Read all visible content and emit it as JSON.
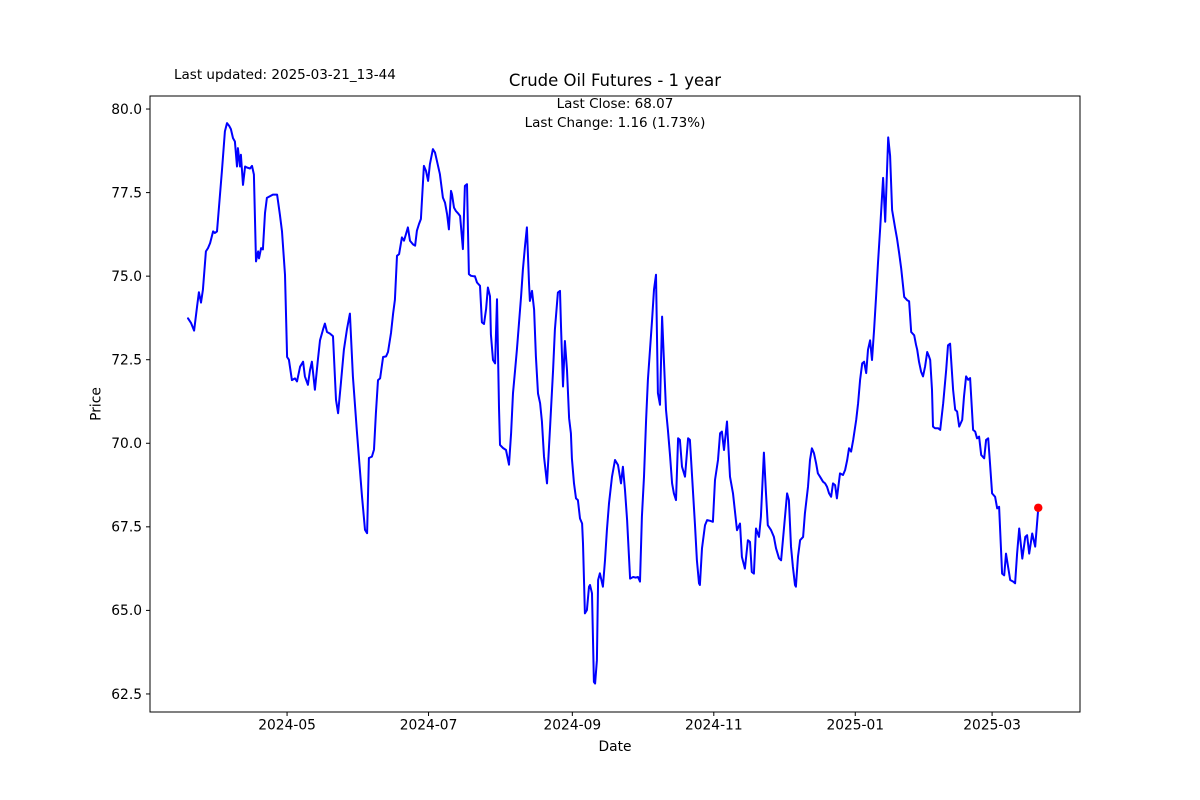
{
  "annotations": {
    "last_updated": "Last updated: 2025-03-21_13-44",
    "last_close_line": "Last Close: 68.07",
    "last_change_line": "Last Change: 1.16 (1.73%)"
  },
  "chart_data": {
    "type": "line",
    "title": "Crude Oil Futures - 1 year",
    "xlabel": "Date",
    "ylabel": "Price",
    "line_color": "#0000ff",
    "marker_color": "#ff0000",
    "frame_color": "#000000",
    "last_close": 68.07,
    "last_change": 1.16,
    "last_change_pct": "1.73%",
    "legend": "none",
    "grid": false,
    "x_unit": "days since 2024-03-21",
    "xlim_days": [
      -18.1,
      382.9
    ],
    "ylim": [
      61.96,
      80.39
    ],
    "y_ticks": [
      62.5,
      65.0,
      67.5,
      70.0,
      72.5,
      75.0,
      77.5,
      80.0
    ],
    "x_ticks": [
      {
        "day": 41,
        "label": "2024-05"
      },
      {
        "day": 102,
        "label": "2024-07"
      },
      {
        "day": 164,
        "label": "2024-09"
      },
      {
        "day": 225,
        "label": "2024-11"
      },
      {
        "day": 286,
        "label": "2025-01"
      },
      {
        "day": 345,
        "label": "2025-03"
      }
    ],
    "points": [
      [
        -1.7,
        73.74
      ],
      [
        -0.4,
        73.6
      ],
      [
        0.9,
        73.37
      ],
      [
        2.2,
        74.1
      ],
      [
        3,
        74.52
      ],
      [
        3.9,
        74.21
      ],
      [
        4.7,
        74.59
      ],
      [
        6,
        75.74
      ],
      [
        6.9,
        75.84
      ],
      [
        7.8,
        75.99
      ],
      [
        9.1,
        76.34
      ],
      [
        9.9,
        76.29
      ],
      [
        10.8,
        76.34
      ],
      [
        12.9,
        78.14
      ],
      [
        14.2,
        79.33
      ],
      [
        15.1,
        79.58
      ],
      [
        16,
        79.5
      ],
      [
        16.8,
        79.4
      ],
      [
        17.7,
        79.13
      ],
      [
        18.5,
        79.03
      ],
      [
        19.4,
        78.28
      ],
      [
        19.8,
        78.83
      ],
      [
        20.7,
        78.28
      ],
      [
        21.1,
        78.63
      ],
      [
        22,
        77.73
      ],
      [
        22.9,
        78.28
      ],
      [
        23.7,
        78.25
      ],
      [
        25,
        78.22
      ],
      [
        25.9,
        78.3
      ],
      [
        26.7,
        78.04
      ],
      [
        27.6,
        75.44
      ],
      [
        28.5,
        75.74
      ],
      [
        28.9,
        75.53
      ],
      [
        29.8,
        75.84
      ],
      [
        30.6,
        75.8
      ],
      [
        31.5,
        76.89
      ],
      [
        32.3,
        77.34
      ],
      [
        33.6,
        77.39
      ],
      [
        34.9,
        77.44
      ],
      [
        36.7,
        77.44
      ],
      [
        37.9,
        76.84
      ],
      [
        38.8,
        76.34
      ],
      [
        40.1,
        75.04
      ],
      [
        41,
        72.58
      ],
      [
        41.8,
        72.5
      ],
      [
        43.1,
        71.89
      ],
      [
        44.4,
        71.94
      ],
      [
        45.3,
        71.85
      ],
      [
        46.6,
        72.29
      ],
      [
        47.9,
        72.44
      ],
      [
        48.7,
        72
      ],
      [
        50,
        71.75
      ],
      [
        50.9,
        72.19
      ],
      [
        51.7,
        72.44
      ],
      [
        53,
        71.6
      ],
      [
        54.3,
        72.5
      ],
      [
        55.2,
        73.08
      ],
      [
        56.5,
        73.4
      ],
      [
        57.3,
        73.58
      ],
      [
        58.2,
        73.33
      ],
      [
        59.5,
        73.28
      ],
      [
        60.8,
        73.2
      ],
      [
        62.1,
        71.3
      ],
      [
        63,
        70.9
      ],
      [
        64.2,
        71.8
      ],
      [
        65.5,
        72.8
      ],
      [
        66.8,
        73.4
      ],
      [
        68.1,
        73.88
      ],
      [
        69.4,
        72
      ],
      [
        71.1,
        70.35
      ],
      [
        72.4,
        69.2
      ],
      [
        73.3,
        68.41
      ],
      [
        74.6,
        67.41
      ],
      [
        75.5,
        67.31
      ],
      [
        76.3,
        69.56
      ],
      [
        77.6,
        69.6
      ],
      [
        78.5,
        69.81
      ],
      [
        79.3,
        70.9
      ],
      [
        80.2,
        71.89
      ],
      [
        81.1,
        71.94
      ],
      [
        82.4,
        72.58
      ],
      [
        83.7,
        72.6
      ],
      [
        84.5,
        72.73
      ],
      [
        85.8,
        73.3
      ],
      [
        86.7,
        73.88
      ],
      [
        87.5,
        74.29
      ],
      [
        88.4,
        75.61
      ],
      [
        89.3,
        75.66
      ],
      [
        90.5,
        76.16
      ],
      [
        91.4,
        76.06
      ],
      [
        92.3,
        76.26
      ],
      [
        93.1,
        76.46
      ],
      [
        94,
        76.06
      ],
      [
        95.3,
        75.95
      ],
      [
        96.2,
        75.91
      ],
      [
        97,
        76.36
      ],
      [
        97.9,
        76.56
      ],
      [
        98.7,
        76.71
      ],
      [
        100,
        78.3
      ],
      [
        100.9,
        78.15
      ],
      [
        101.8,
        77.85
      ],
      [
        102.6,
        78.35
      ],
      [
        103.9,
        78.8
      ],
      [
        104.8,
        78.7
      ],
      [
        105.6,
        78.45
      ],
      [
        106.9,
        78.05
      ],
      [
        108.2,
        77.35
      ],
      [
        109.1,
        77.2
      ],
      [
        110,
        76.85
      ],
      [
        110.8,
        76.4
      ],
      [
        111.7,
        77.55
      ],
      [
        112.1,
        77.45
      ],
      [
        113,
        77.05
      ],
      [
        113.8,
        76.95
      ],
      [
        114.7,
        76.88
      ],
      [
        115.6,
        76.8
      ],
      [
        116.8,
        75.81
      ],
      [
        117.7,
        77.7
      ],
      [
        118.6,
        77.75
      ],
      [
        119.4,
        75.06
      ],
      [
        120.3,
        75.01
      ],
      [
        121.2,
        75
      ],
      [
        122,
        75
      ],
      [
        122.9,
        74.81
      ],
      [
        124.2,
        74.71
      ],
      [
        125,
        73.62
      ],
      [
        125.9,
        73.57
      ],
      [
        126.8,
        74.02
      ],
      [
        127.6,
        74.66
      ],
      [
        128.5,
        74.4
      ],
      [
        128.9,
        73.26
      ],
      [
        129.8,
        72.49
      ],
      [
        130.7,
        72.39
      ],
      [
        131.5,
        74.31
      ],
      [
        132.4,
        71.06
      ],
      [
        132.8,
        69.95
      ],
      [
        134.1,
        69.86
      ],
      [
        135.4,
        69.8
      ],
      [
        136.7,
        69.36
      ],
      [
        137.6,
        70.3
      ],
      [
        138.4,
        71.5
      ],
      [
        139.3,
        72.16
      ],
      [
        140.1,
        72.8
      ],
      [
        141,
        73.6
      ],
      [
        141.9,
        74.4
      ],
      [
        142.7,
        75.2
      ],
      [
        143.6,
        75.9
      ],
      [
        144.4,
        76.46
      ],
      [
        145.3,
        74.8
      ],
      [
        145.7,
        74.26
      ],
      [
        146.6,
        74.56
      ],
      [
        147.5,
        74
      ],
      [
        148.3,
        72.6
      ],
      [
        149.2,
        71.49
      ],
      [
        150.1,
        71.2
      ],
      [
        150.9,
        70.66
      ],
      [
        151.8,
        69.6
      ],
      [
        153.1,
        68.8
      ],
      [
        154.4,
        70.5
      ],
      [
        155.7,
        72.2
      ],
      [
        156.5,
        73.4
      ],
      [
        157.8,
        74.51
      ],
      [
        158.7,
        74.56
      ],
      [
        159.1,
        73.5
      ],
      [
        160,
        71.7
      ],
      [
        160.8,
        73.06
      ],
      [
        161.7,
        72.19
      ],
      [
        162.6,
        70.75
      ],
      [
        163.4,
        70.3
      ],
      [
        163.8,
        69.55
      ],
      [
        164.7,
        68.8
      ],
      [
        165.6,
        68.35
      ],
      [
        166.4,
        68.3
      ],
      [
        167.3,
        67.75
      ],
      [
        168.2,
        67.6
      ],
      [
        168.6,
        67
      ],
      [
        169.4,
        64.91
      ],
      [
        170.3,
        65.01
      ],
      [
        171.2,
        65.71
      ],
      [
        171.6,
        65.76
      ],
      [
        172.5,
        65.51
      ],
      [
        173.3,
        62.86
      ],
      [
        173.8,
        62.81
      ],
      [
        174.6,
        63.51
      ],
      [
        175.1,
        65.91
      ],
      [
        175.9,
        66.11
      ],
      [
        177.2,
        65.71
      ],
      [
        178.1,
        66.5
      ],
      [
        178.9,
        67.4
      ],
      [
        179.8,
        68.2
      ],
      [
        181.1,
        69
      ],
      [
        182.4,
        69.5
      ],
      [
        183.7,
        69.35
      ],
      [
        185,
        68.8
      ],
      [
        185.8,
        69.3
      ],
      [
        186.7,
        68.6
      ],
      [
        187.6,
        67.7
      ],
      [
        188.9,
        65.95
      ],
      [
        190.2,
        66
      ],
      [
        191.4,
        65.98
      ],
      [
        192.3,
        66
      ],
      [
        193.2,
        65.86
      ],
      [
        194,
        67.8
      ],
      [
        194.9,
        69
      ],
      [
        195.8,
        70.7
      ],
      [
        196.6,
        71.9
      ],
      [
        197.5,
        72.8
      ],
      [
        198.4,
        73.7
      ],
      [
        199.2,
        74.6
      ],
      [
        200.1,
        75.04
      ],
      [
        200.9,
        71.5
      ],
      [
        201.8,
        71.15
      ],
      [
        202.7,
        73.79
      ],
      [
        203.5,
        72.5
      ],
      [
        204.4,
        71
      ],
      [
        205.2,
        70.4
      ],
      [
        206.1,
        69.65
      ],
      [
        207,
        68.8
      ],
      [
        207.8,
        68.5
      ],
      [
        208.7,
        68.3
      ],
      [
        209.6,
        70.15
      ],
      [
        210.4,
        70.1
      ],
      [
        211.3,
        69.3
      ],
      [
        212.6,
        69
      ],
      [
        213.9,
        70.15
      ],
      [
        214.7,
        70.1
      ],
      [
        215.6,
        69.05
      ],
      [
        216.9,
        67.55
      ],
      [
        217.7,
        66.5
      ],
      [
        218.6,
        65.81
      ],
      [
        219,
        65.76
      ],
      [
        219.9,
        66.86
      ],
      [
        221.2,
        67.55
      ],
      [
        222.1,
        67.7
      ],
      [
        223.4,
        67.68
      ],
      [
        224.6,
        67.65
      ],
      [
        225.5,
        68.9
      ],
      [
        226.8,
        69.5
      ],
      [
        227.7,
        70.3
      ],
      [
        228.5,
        70.35
      ],
      [
        229.4,
        69.8
      ],
      [
        230.7,
        70.65
      ],
      [
        232,
        69
      ],
      [
        233.3,
        68.5
      ],
      [
        235,
        67.4
      ],
      [
        236.3,
        67.6
      ],
      [
        237.1,
        66.6
      ],
      [
        238.4,
        66.25
      ],
      [
        239.7,
        67.1
      ],
      [
        240.6,
        67.05
      ],
      [
        241.4,
        66.15
      ],
      [
        242.3,
        66.1
      ],
      [
        243.2,
        67.45
      ],
      [
        244.5,
        67.2
      ],
      [
        245.3,
        67.8
      ],
      [
        246.6,
        69.72
      ],
      [
        247.5,
        68.5
      ],
      [
        248.3,
        67.55
      ],
      [
        249.7,
        67.4
      ],
      [
        250.9,
        67.2
      ],
      [
        251.8,
        66.86
      ],
      [
        253.1,
        66.56
      ],
      [
        254,
        66.5
      ],
      [
        255.3,
        67.5
      ],
      [
        256.6,
        68.5
      ],
      [
        257.4,
        68.3
      ],
      [
        258.3,
        66.91
      ],
      [
        259.1,
        66.3
      ],
      [
        260,
        65.76
      ],
      [
        260.4,
        65.71
      ],
      [
        261.3,
        66.61
      ],
      [
        262.2,
        67.1
      ],
      [
        263.5,
        67.2
      ],
      [
        264.3,
        67.9
      ],
      [
        265.6,
        68.7
      ],
      [
        266.5,
        69.5
      ],
      [
        267.3,
        69.85
      ],
      [
        268.2,
        69.7
      ],
      [
        269.1,
        69.4
      ],
      [
        269.9,
        69.1
      ],
      [
        270.8,
        69
      ],
      [
        272.1,
        68.85
      ],
      [
        273,
        68.8
      ],
      [
        273.8,
        68.7
      ],
      [
        274.7,
        68.5
      ],
      [
        275.6,
        68.4
      ],
      [
        276.4,
        68.8
      ],
      [
        277.3,
        68.75
      ],
      [
        278.1,
        68.35
      ],
      [
        279.4,
        69.1
      ],
      [
        280.7,
        69.05
      ],
      [
        281.6,
        69.2
      ],
      [
        282.5,
        69.5
      ],
      [
        283.3,
        69.85
      ],
      [
        284.2,
        69.75
      ],
      [
        285.1,
        70.1
      ],
      [
        286.4,
        70.7
      ],
      [
        287.2,
        71.2
      ],
      [
        288.1,
        71.9
      ],
      [
        289,
        72.39
      ],
      [
        289.8,
        72.44
      ],
      [
        290.7,
        72.1
      ],
      [
        291.5,
        72.8
      ],
      [
        292.4,
        73.08
      ],
      [
        293.2,
        72.49
      ],
      [
        294.1,
        73.4
      ],
      [
        295,
        74.4
      ],
      [
        295.8,
        75.4
      ],
      [
        296.7,
        76.4
      ],
      [
        298,
        77.94
      ],
      [
        298.9,
        76.63
      ],
      [
        300.2,
        79.15
      ],
      [
        301,
        78.6
      ],
      [
        301.9,
        76.98
      ],
      [
        303.2,
        76.43
      ],
      [
        304,
        76.13
      ],
      [
        304.9,
        75.7
      ],
      [
        305.8,
        75.23
      ],
      [
        307.1,
        74.38
      ],
      [
        308.4,
        74.28
      ],
      [
        309.2,
        74.25
      ],
      [
        310.1,
        73.33
      ],
      [
        311.4,
        73.23
      ],
      [
        312.2,
        72.95
      ],
      [
        312.7,
        72.8
      ],
      [
        313.5,
        72.44
      ],
      [
        314.4,
        72.14
      ],
      [
        315.2,
        72
      ],
      [
        316.1,
        72.3
      ],
      [
        317,
        72.73
      ],
      [
        317.8,
        72.6
      ],
      [
        318.3,
        72.49
      ],
      [
        319.1,
        71.6
      ],
      [
        319.5,
        70.5
      ],
      [
        320.4,
        70.45
      ],
      [
        321.7,
        70.45
      ],
      [
        322.6,
        70.4
      ],
      [
        323.9,
        71.2
      ],
      [
        325.2,
        72.2
      ],
      [
        326,
        72.93
      ],
      [
        326.9,
        72.98
      ],
      [
        328.2,
        71.6
      ],
      [
        329.1,
        71
      ],
      [
        329.9,
        70.95
      ],
      [
        330.8,
        70.5
      ],
      [
        332.1,
        70.7
      ],
      [
        332.9,
        71.4
      ],
      [
        333.8,
        72
      ],
      [
        334.7,
        71.9
      ],
      [
        335.5,
        71.95
      ],
      [
        336.8,
        70.4
      ],
      [
        337.7,
        70.35
      ],
      [
        338.5,
        70.15
      ],
      [
        339.4,
        70.2
      ],
      [
        340.3,
        69.65
      ],
      [
        341.6,
        69.55
      ],
      [
        342.4,
        70.1
      ],
      [
        343.3,
        70.15
      ],
      [
        344.1,
        69.4
      ],
      [
        345,
        68.5
      ],
      [
        346.3,
        68.4
      ],
      [
        347.2,
        68.05
      ],
      [
        348,
        68.1
      ],
      [
        349.3,
        66.1
      ],
      [
        350.2,
        66.05
      ],
      [
        351,
        66.7
      ],
      [
        351.9,
        66.3
      ],
      [
        352.8,
        65.91
      ],
      [
        354.1,
        65.86
      ],
      [
        354.9,
        65.81
      ],
      [
        355.8,
        66.7
      ],
      [
        356.7,
        67.45
      ],
      [
        358,
        66.55
      ],
      [
        359.3,
        67.2
      ],
      [
        360.1,
        67.25
      ],
      [
        361,
        66.7
      ],
      [
        362.3,
        67.3
      ],
      [
        363.6,
        66.91
      ],
      [
        364.9,
        68.07
      ]
    ],
    "end_marker": {
      "day": 364.9,
      "price": 68.07
    }
  }
}
